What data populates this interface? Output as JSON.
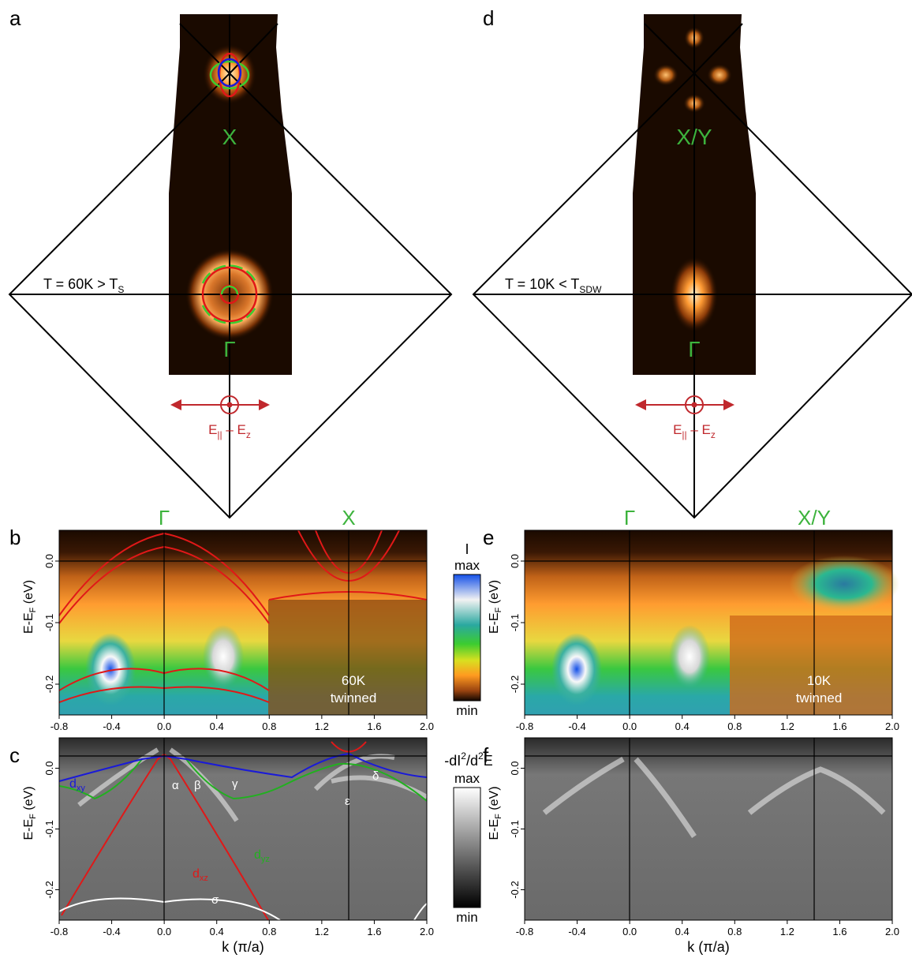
{
  "panel_letters": [
    "a",
    "b",
    "c",
    "d",
    "e",
    "f"
  ],
  "panels": {
    "a": {
      "temperature_label": "T = 60K > T",
      "temperature_sub": "S",
      "point_top": "X",
      "point_bottom": "Γ",
      "pol_label_main": "E",
      "pol_label_sub1": "||",
      "pol_label_sep": " – E",
      "pol_label_sub2": "z"
    },
    "d": {
      "temperature_label": "T = 10K < T",
      "temperature_sub": "SDW",
      "point_top": "X/Y",
      "point_bottom": "Γ",
      "pol_label_main": "E",
      "pol_label_sub1": "||",
      "pol_label_sep": " – E",
      "pol_label_sub2": "z"
    },
    "b": {
      "top_labels": [
        "Γ",
        "X"
      ],
      "annotation": [
        "60K",
        "twinned"
      ]
    },
    "e": {
      "top_labels": [
        "Γ",
        "X/Y"
      ],
      "annotation": [
        "10K",
        "twinned"
      ]
    },
    "c": {
      "band_labels": [
        "α",
        "β",
        "γ",
        "δ",
        "ε",
        "σ"
      ],
      "orbital_labels": [
        {
          "main": "d",
          "sub": "xy",
          "color": "#1a1ad8"
        },
        {
          "main": "d",
          "sub": "yz",
          "color": "#22b020"
        },
        {
          "main": "d",
          "sub": "xz",
          "color": "#e01818"
        }
      ]
    }
  },
  "axes": {
    "ylabel_main": "E-E",
    "ylabel_sub": "F",
    "ylabel_unit": " (eV)",
    "xlabel": "k (π/a)",
    "x_ticks": [
      "-0.8",
      "-0.4",
      "0.0",
      "0.4",
      "0.8",
      "1.2",
      "1.6",
      "2.0"
    ],
    "y_ticks": [
      "0.0",
      "-0.1",
      "-0.2"
    ],
    "x_range": [
      -0.8,
      2.0
    ],
    "y_range": [
      -0.25,
      0.05
    ]
  },
  "colorbars": {
    "intensity": {
      "title": "I",
      "max": "max",
      "min": "min"
    },
    "curvature": {
      "title_pre": "-dI",
      "title_sup1": "2",
      "title_mid": "/d",
      "title_sup2": "2",
      "title_post": "E",
      "max": "max",
      "min": "min"
    }
  },
  "colors": {
    "gamma_label": "#3db33d",
    "band_red": "#e01818",
    "band_green": "#22b020",
    "band_blue": "#1a1ad8",
    "polarization": "#c0282d"
  }
}
